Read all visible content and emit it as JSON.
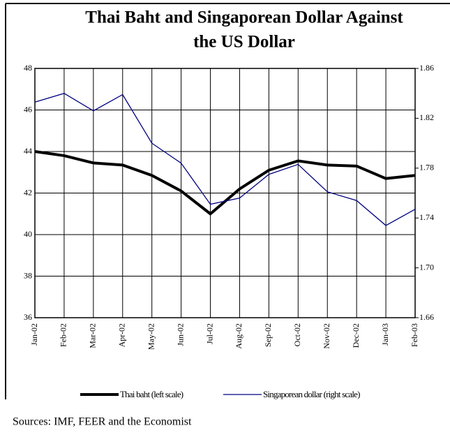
{
  "chart_data": {
    "type": "line",
    "title": "Thai Baht and Singaporean Dollar Against",
    "title_line2": "the US Dollar",
    "categories": [
      "Jan-02",
      "Feb-02",
      "Mar-02",
      "Apr-02",
      "May-02",
      "Jun-02",
      "Jul-02",
      "Aug-02",
      "Sep-02",
      "Oct-02",
      "Nov-02",
      "Dec-02",
      "Jan-03",
      "Feb-03"
    ],
    "series": [
      {
        "name": "Thai baht (left scale)",
        "color": "#000000",
        "width": 4,
        "values": [
          44.0,
          43.8,
          43.45,
          43.35,
          42.85,
          42.1,
          41.0,
          42.2,
          43.1,
          43.55,
          43.35,
          43.3,
          42.7,
          42.85
        ]
      },
      {
        "name": "Singaporean dollar (right scale)",
        "color": "#000080",
        "width": 1.3,
        "axis": "y2",
        "values": [
          1.833,
          1.84,
          1.826,
          1.839,
          1.8,
          1.784,
          1.751,
          1.756,
          1.775,
          1.783,
          1.761,
          1.754,
          1.734,
          1.747
        ]
      }
    ],
    "ylim": [
      36,
      48
    ],
    "yticks": [
      36,
      38,
      40,
      42,
      44,
      46,
      48
    ],
    "y2lim": [
      1.66,
      1.86
    ],
    "y2ticks": [
      1.66,
      {
        "value": 1.7,
        "label": "1.70"
      },
      1.74,
      1.78,
      1.82,
      1.86
    ],
    "grid": true,
    "source": "Sources: IMF, FEER and the Economist"
  }
}
